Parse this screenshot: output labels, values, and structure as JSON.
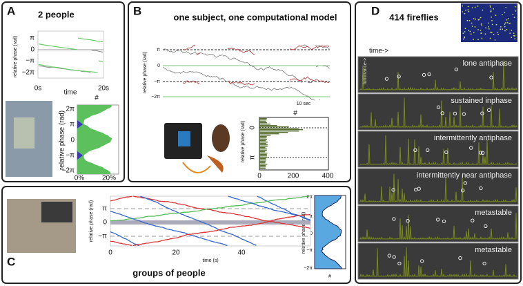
{
  "panels": {
    "A": {
      "letter": "A",
      "title": "2 people",
      "y_label": "relative phase (rad)",
      "y_ticks": [
        "π",
        "0",
        "−π",
        "−2π"
      ],
      "x_ticks": [
        "0s",
        "20s"
      ],
      "x_label": "time",
      "hist_title": "#",
      "hist_y_ticks": [
        "2π",
        "π",
        "0",
        "−π",
        "−2π"
      ],
      "hist_x_ticks": [
        "0%",
        "20%"
      ],
      "hist_y_label": "relative phase (rad)"
    },
    "B": {
      "letter": "B",
      "title": "one subject, one computational model",
      "y_label": "relative phase (rad)",
      "y_ticks": [
        "π",
        "0",
        "−π",
        "−2π"
      ],
      "scale_label": "10 sec",
      "hist_title": "#",
      "hist_y_ticks": [
        "0",
        "π"
      ],
      "hist_x_ticks": [
        "0",
        "200",
        "400"
      ],
      "hist_y_label": "relative phase (rad)"
    },
    "C": {
      "letter": "C",
      "title": "groups of people",
      "y_label": "relative phase (rad)",
      "y_ticks": [
        "π",
        "0",
        "−π"
      ],
      "x_ticks": [
        "0",
        "20",
        "40"
      ],
      "x_label": "time (s)",
      "hist_y_ticks": [
        "2π",
        "π",
        "0",
        "−π",
        "−2π"
      ],
      "hist_y_label": "relative phase (rad)",
      "hist_x_label": "#"
    },
    "D": {
      "letter": "D",
      "title": "414 fireflies",
      "time_label": "time->",
      "y_label": "luminance->",
      "rows": [
        "lone antiphase",
        "sustained inphase",
        "intermittently antiphase",
        "intermittently near antiphase",
        "metastable",
        "metastable"
      ]
    }
  }
}
